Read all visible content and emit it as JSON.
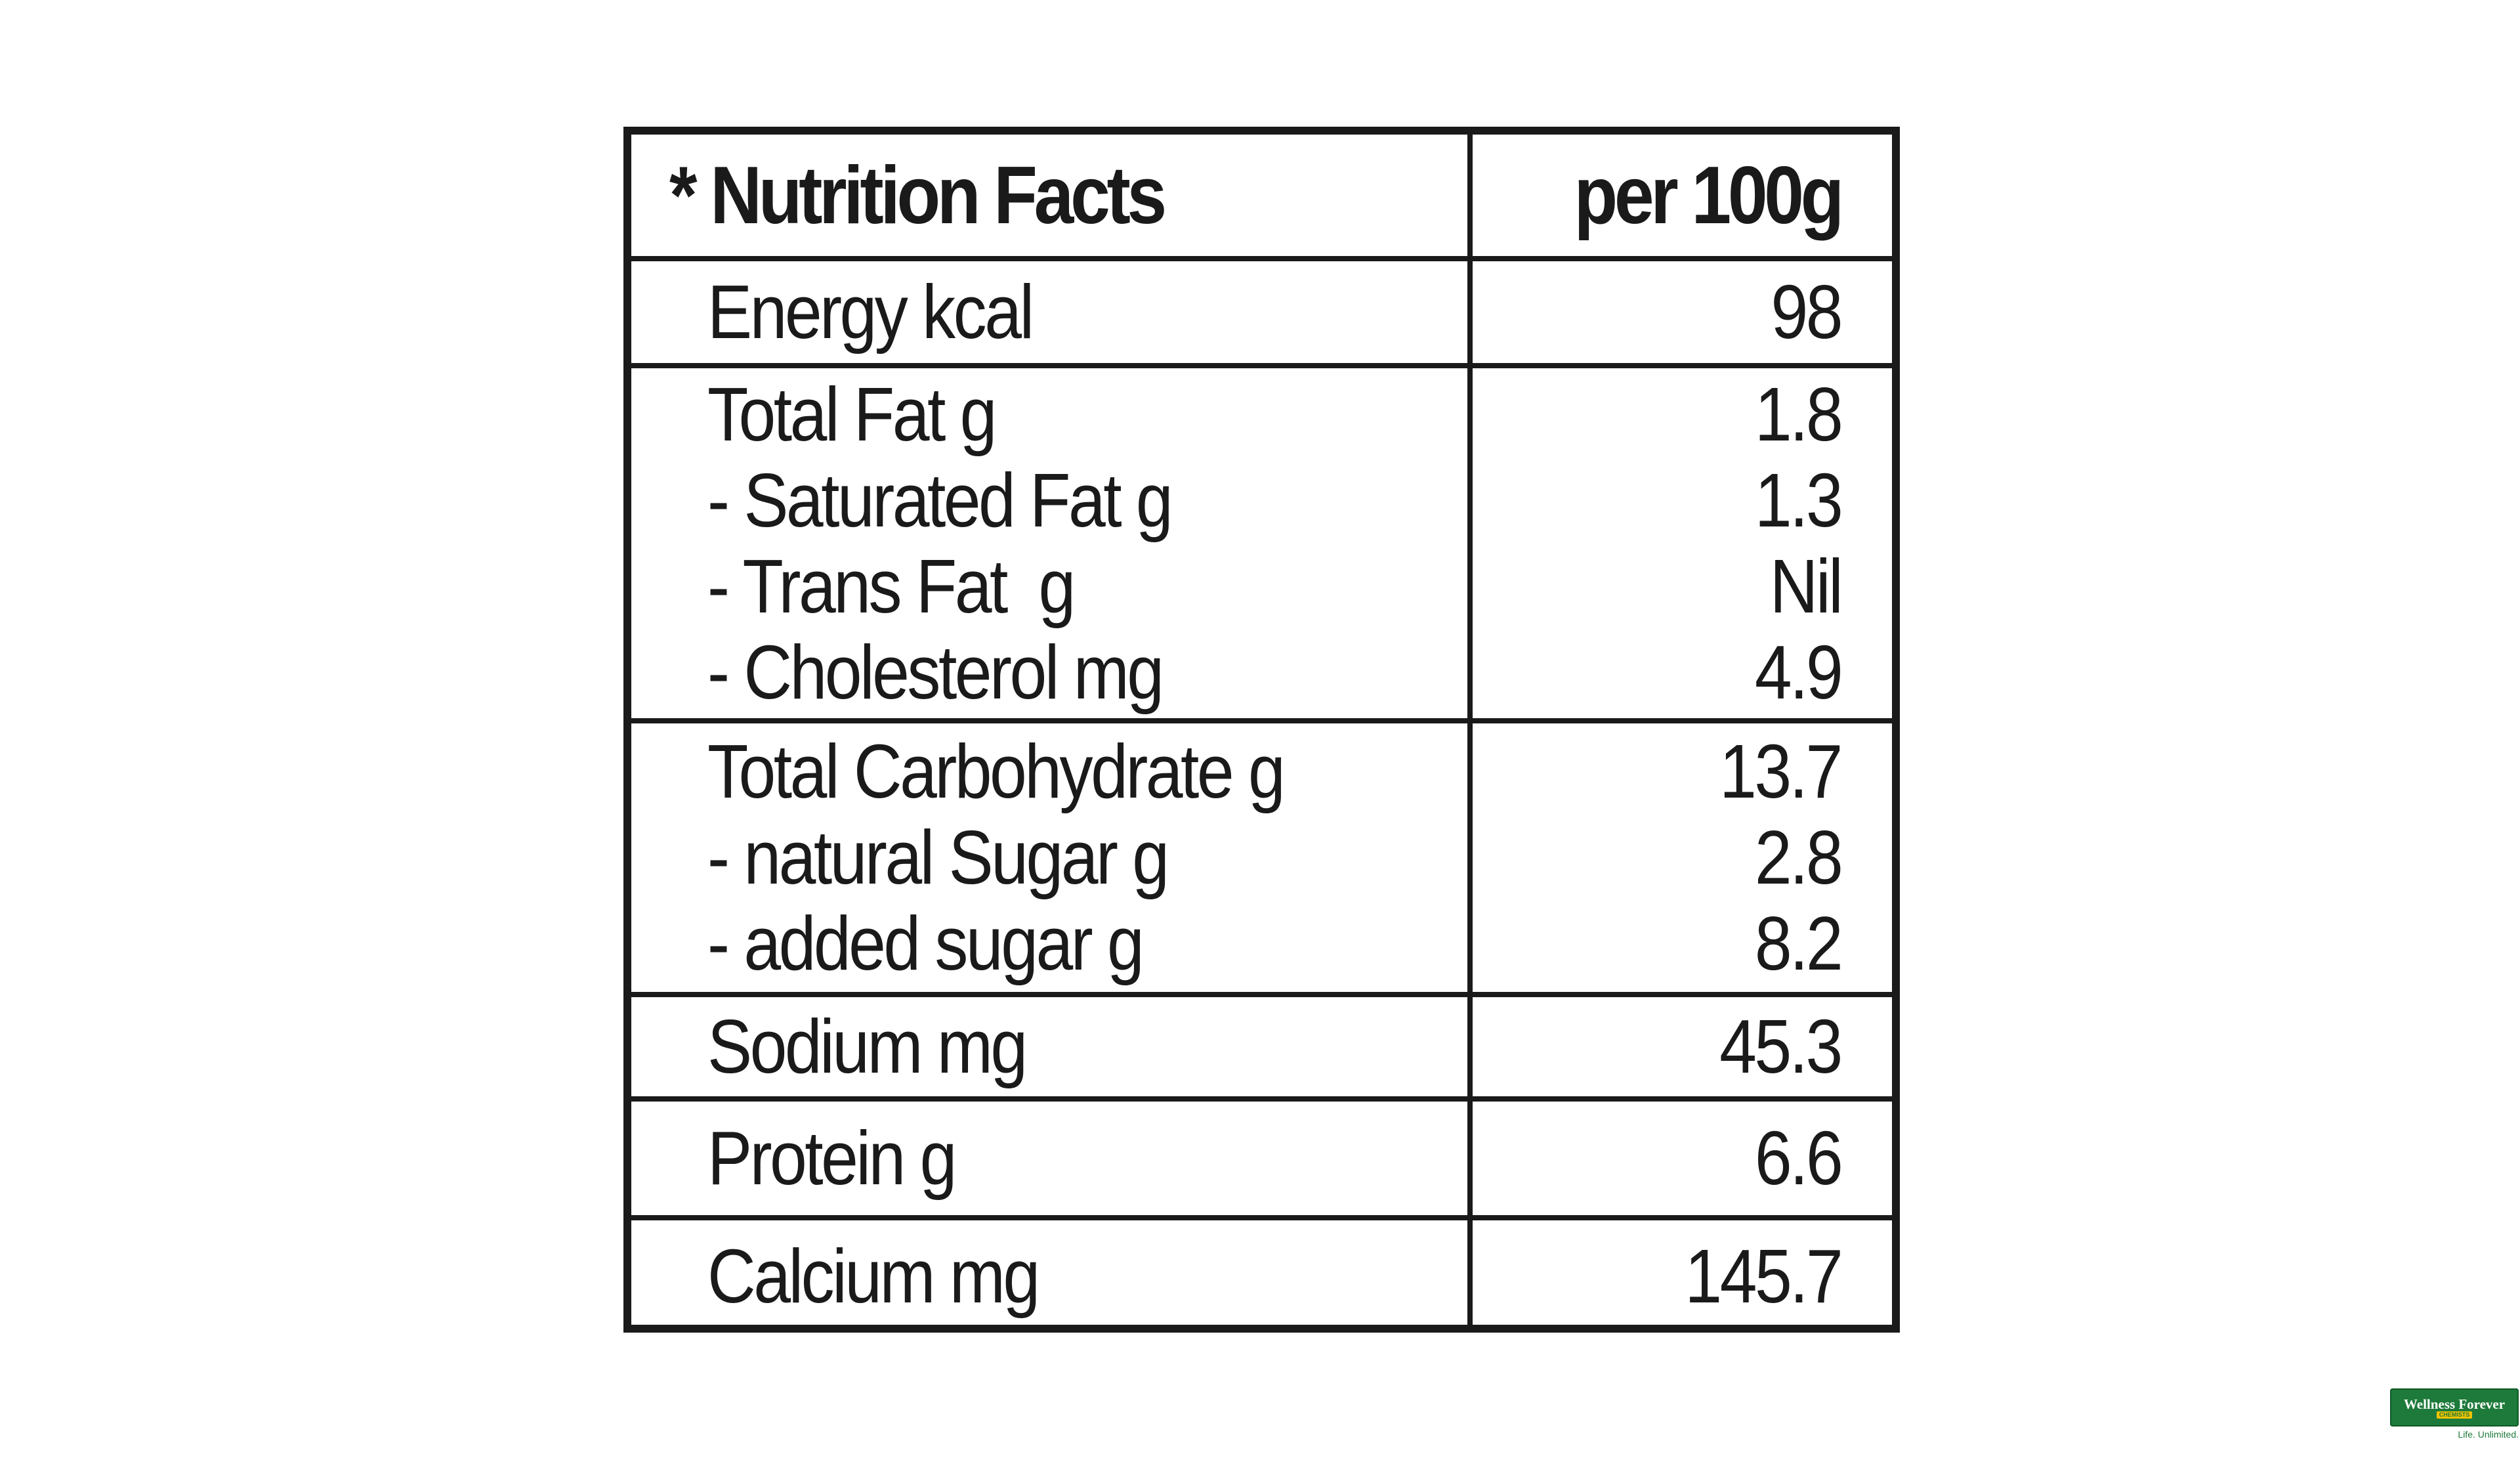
{
  "table": {
    "header": {
      "label": "* Nutrition Facts",
      "value": "per 100g"
    },
    "groups": [
      {
        "labels": [
          "Energy kcal"
        ],
        "values": [
          "98"
        ]
      },
      {
        "labels": [
          "Total Fat g",
          "- Saturated Fat g",
          "- Trans Fat  g",
          "- Cholesterol mg"
        ],
        "values": [
          "1.8",
          "1.3",
          "Nil",
          "4.9"
        ]
      },
      {
        "labels": [
          "Total Carbohydrate g",
          "- natural Sugar g",
          "- added sugar g"
        ],
        "values": [
          "13.7",
          "2.8",
          "8.2"
        ]
      },
      {
        "labels": [
          "Sodium mg"
        ],
        "values": [
          "45.3"
        ]
      },
      {
        "labels": [
          "Protein g"
        ],
        "values": [
          "6.6"
        ]
      },
      {
        "labels": [
          "Calcium mg"
        ],
        "values": [
          "145.7"
        ]
      }
    ]
  },
  "logo": {
    "main": "Wellness Forever",
    "sub": "CHEMISTS",
    "tagline": "Life. Unlimited.",
    "color": "#1d7a3a"
  }
}
